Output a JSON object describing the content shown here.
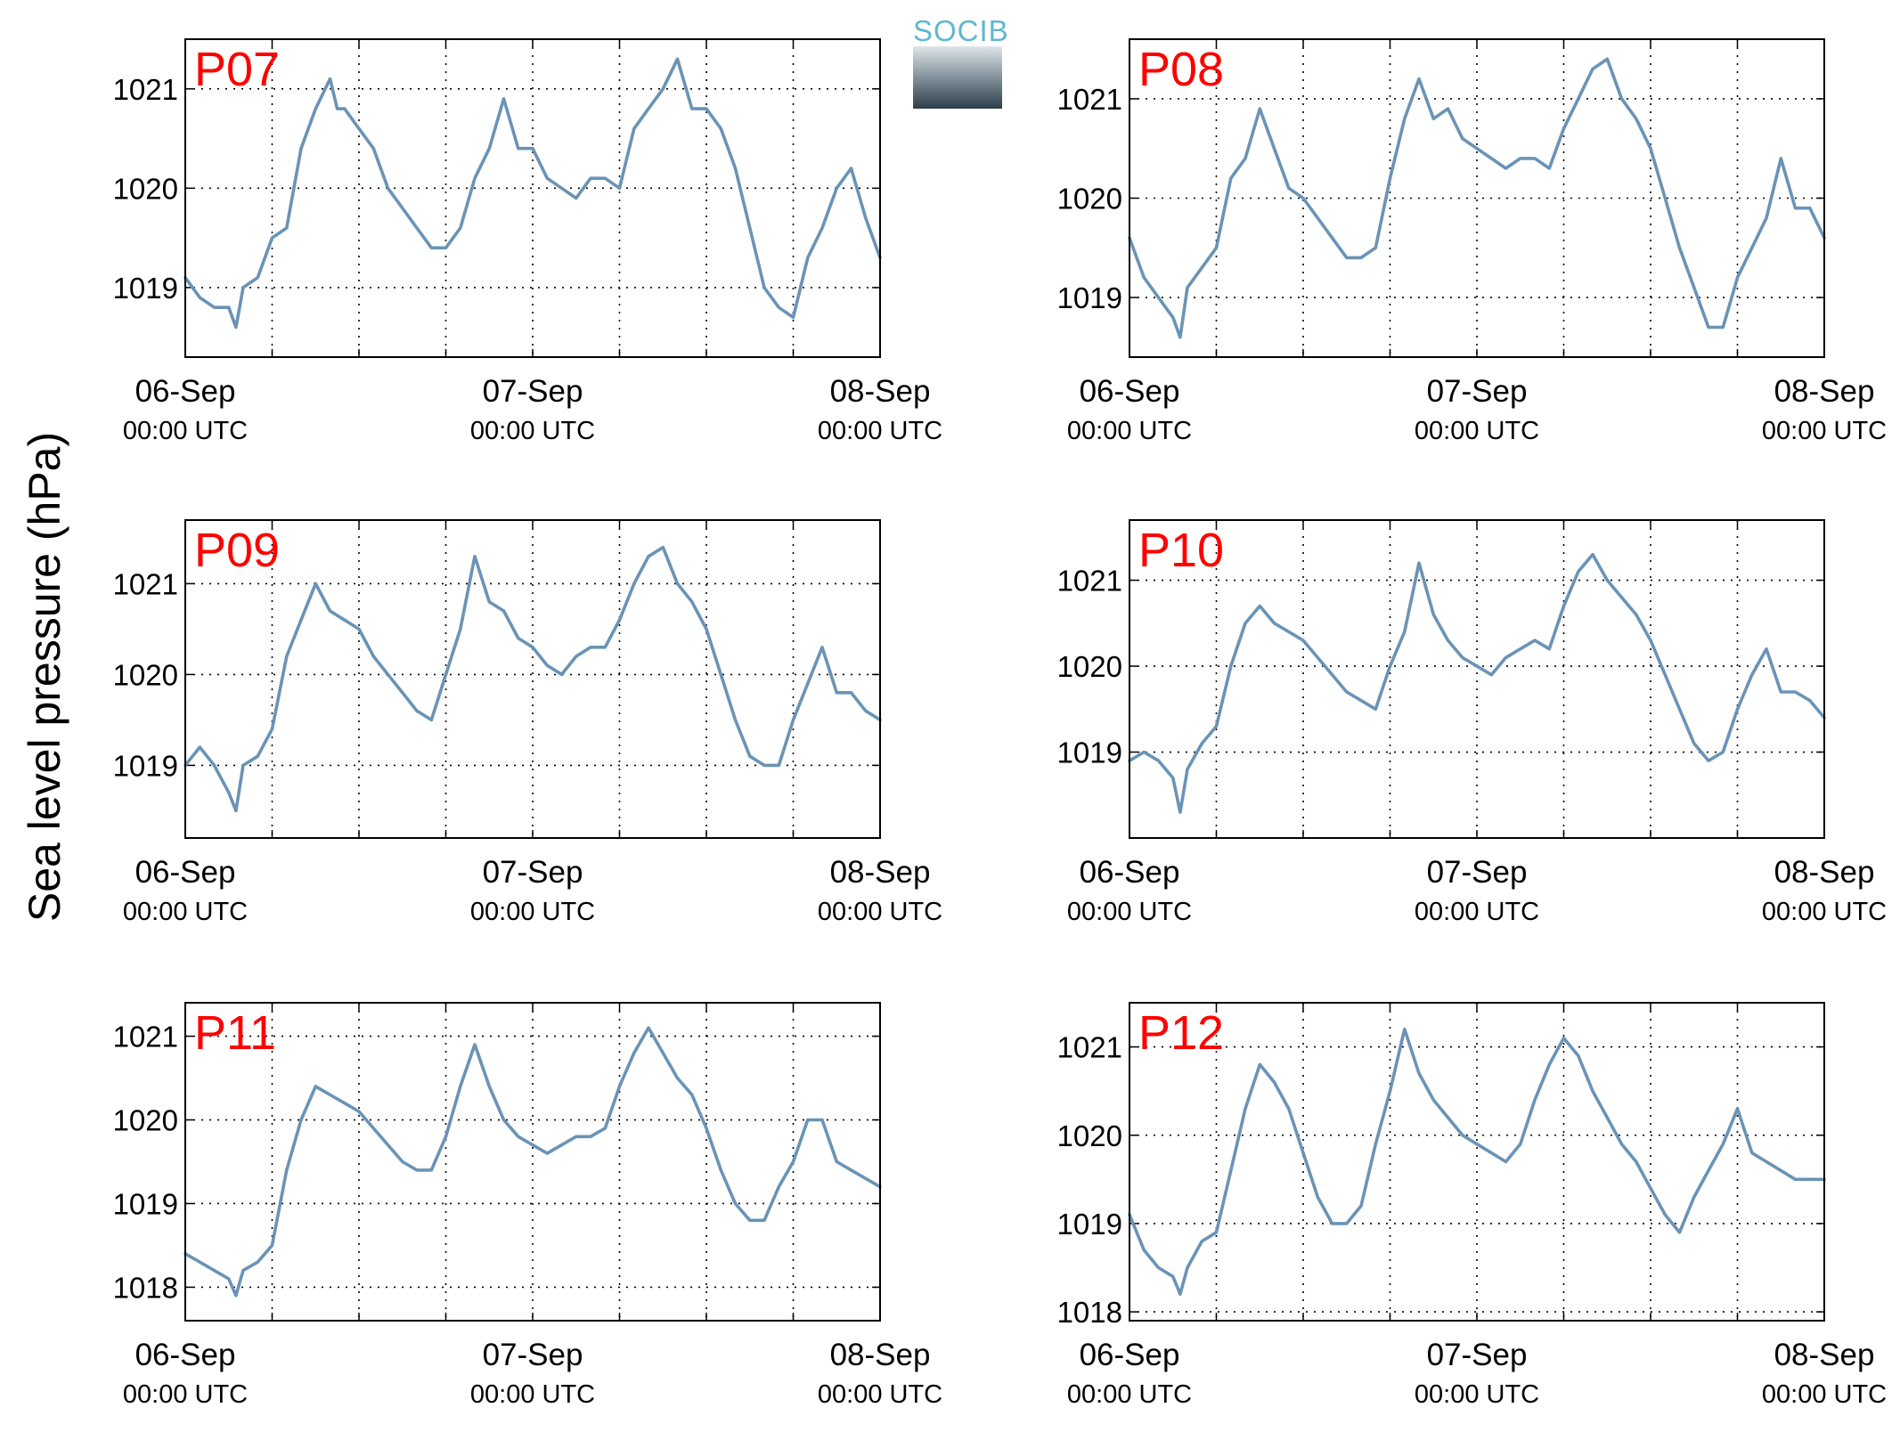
{
  "figure": {
    "ylabel": "Sea level pressure (hPa)",
    "logo_text": "SOCIB",
    "line_color": "#6a93b6",
    "station_label_color": "#ff0000"
  },
  "chart_data": [
    {
      "type": "line",
      "station": "P07",
      "x_unit": "hours since 06-Sep 00:00 UTC",
      "x_ticks": [
        {
          "day": "06-Sep",
          "time": "00:00 UTC",
          "x": 0
        },
        {
          "day": "07-Sep",
          "time": "00:00 UTC",
          "x": 24
        },
        {
          "day": "08-Sep",
          "time": "00:00 UTC",
          "x": 48
        }
      ],
      "xlim": [
        0,
        48
      ],
      "yticks": [
        1019,
        1020,
        1021
      ],
      "ylim": [
        1018.3,
        1021.5
      ],
      "grid": true,
      "x": [
        0,
        1,
        2,
        3,
        3.5,
        4,
        5,
        6,
        7,
        8,
        9,
        10,
        10.5,
        11,
        12,
        13,
        14,
        15,
        16,
        17,
        18,
        19,
        20,
        21,
        22,
        23,
        24,
        25,
        26,
        27,
        28,
        29,
        30,
        31,
        32,
        33,
        34,
        35,
        36,
        37,
        38,
        39,
        40,
        41,
        42,
        43,
        44,
        45,
        46,
        47,
        48
      ],
      "y": [
        1019.1,
        1018.9,
        1018.8,
        1018.8,
        1018.6,
        1019.0,
        1019.1,
        1019.5,
        1019.6,
        1020.4,
        1020.8,
        1021.1,
        1020.8,
        1020.8,
        1020.6,
        1020.4,
        1020.0,
        1019.8,
        1019.6,
        1019.4,
        1019.4,
        1019.6,
        1020.1,
        1020.4,
        1020.9,
        1020.4,
        1020.4,
        1020.1,
        1020.0,
        1019.9,
        1020.1,
        1020.1,
        1020.0,
        1020.6,
        1020.8,
        1021.0,
        1021.3,
        1020.8,
        1020.8,
        1020.6,
        1020.2,
        1019.6,
        1019.0,
        1018.8,
        1018.7,
        1019.3,
        1019.6,
        1020.0,
        1020.2,
        1019.7,
        1019.3
      ]
    },
    {
      "type": "line",
      "station": "P08",
      "x_unit": "hours since 06-Sep 00:00 UTC",
      "x_ticks": [
        {
          "day": "06-Sep",
          "time": "00:00 UTC",
          "x": 0
        },
        {
          "day": "07-Sep",
          "time": "00:00 UTC",
          "x": 24
        },
        {
          "day": "08-Sep",
          "time": "00:00 UTC",
          "x": 48
        }
      ],
      "xlim": [
        0,
        48
      ],
      "yticks": [
        1019,
        1020,
        1021
      ],
      "ylim": [
        1018.4,
        1021.6
      ],
      "grid": true,
      "x": [
        0,
        1,
        2,
        3,
        3.5,
        4,
        5,
        6,
        7,
        8,
        9,
        10,
        11,
        12,
        13,
        14,
        15,
        16,
        17,
        18,
        19,
        20,
        21,
        22,
        23,
        24,
        25,
        26,
        27,
        28,
        29,
        30,
        31,
        32,
        33,
        34,
        35,
        36,
        37,
        38,
        39,
        40,
        41,
        42,
        43,
        44,
        45,
        46,
        47,
        48
      ],
      "y": [
        1019.6,
        1019.2,
        1019.0,
        1018.8,
        1018.6,
        1019.1,
        1019.3,
        1019.5,
        1020.2,
        1020.4,
        1020.9,
        1020.5,
        1020.1,
        1020.0,
        1019.8,
        1019.6,
        1019.4,
        1019.4,
        1019.5,
        1020.2,
        1020.8,
        1021.2,
        1020.8,
        1020.9,
        1020.6,
        1020.5,
        1020.4,
        1020.3,
        1020.4,
        1020.4,
        1020.3,
        1020.7,
        1021.0,
        1021.3,
        1021.4,
        1021.0,
        1020.8,
        1020.5,
        1020.0,
        1019.5,
        1019.1,
        1018.7,
        1018.7,
        1019.2,
        1019.5,
        1019.8,
        1020.4,
        1019.9,
        1019.9,
        1019.6
      ]
    },
    {
      "type": "line",
      "station": "P09",
      "x_unit": "hours since 06-Sep 00:00 UTC",
      "x_ticks": [
        {
          "day": "06-Sep",
          "time": "00:00 UTC",
          "x": 0
        },
        {
          "day": "07-Sep",
          "time": "00:00 UTC",
          "x": 24
        },
        {
          "day": "08-Sep",
          "time": "00:00 UTC",
          "x": 48
        }
      ],
      "xlim": [
        0,
        48
      ],
      "yticks": [
        1019,
        1020,
        1021
      ],
      "ylim": [
        1018.2,
        1021.7
      ],
      "grid": true,
      "x": [
        0,
        1,
        2,
        3,
        3.5,
        4,
        5,
        6,
        7,
        8,
        9,
        10,
        11,
        12,
        13,
        14,
        15,
        16,
        17,
        18,
        19,
        20,
        21,
        22,
        23,
        24,
        25,
        26,
        27,
        28,
        29,
        30,
        31,
        32,
        33,
        34,
        35,
        36,
        37,
        38,
        39,
        40,
        41,
        42,
        43,
        44,
        45,
        46,
        47,
        48
      ],
      "y": [
        1019.0,
        1019.2,
        1019.0,
        1018.7,
        1018.5,
        1019.0,
        1019.1,
        1019.4,
        1020.2,
        1020.6,
        1021.0,
        1020.7,
        1020.6,
        1020.5,
        1020.2,
        1020.0,
        1019.8,
        1019.6,
        1019.5,
        1020.0,
        1020.5,
        1021.3,
        1020.8,
        1020.7,
        1020.4,
        1020.3,
        1020.1,
        1020.0,
        1020.2,
        1020.3,
        1020.3,
        1020.6,
        1021.0,
        1021.3,
        1021.4,
        1021.0,
        1020.8,
        1020.5,
        1020.0,
        1019.5,
        1019.1,
        1019.0,
        1019.0,
        1019.5,
        1019.9,
        1020.3,
        1019.8,
        1019.8,
        1019.6,
        1019.5
      ]
    },
    {
      "type": "line",
      "station": "P10",
      "x_unit": "hours since 06-Sep 00:00 UTC",
      "x_ticks": [
        {
          "day": "06-Sep",
          "time": "00:00 UTC",
          "x": 0
        },
        {
          "day": "07-Sep",
          "time": "00:00 UTC",
          "x": 24
        },
        {
          "day": "08-Sep",
          "time": "00:00 UTC",
          "x": 48
        }
      ],
      "xlim": [
        0,
        48
      ],
      "yticks": [
        1019,
        1020,
        1021
      ],
      "ylim": [
        1018.0,
        1021.7
      ],
      "grid": true,
      "x": [
        0,
        1,
        2,
        3,
        3.5,
        4,
        5,
        6,
        7,
        8,
        9,
        10,
        11,
        12,
        13,
        14,
        15,
        16,
        17,
        18,
        19,
        20,
        21,
        22,
        23,
        24,
        25,
        26,
        27,
        28,
        29,
        30,
        31,
        32,
        33,
        34,
        35,
        36,
        37,
        38,
        39,
        40,
        41,
        42,
        43,
        44,
        45,
        46,
        47,
        48
      ],
      "y": [
        1018.9,
        1019.0,
        1018.9,
        1018.7,
        1018.3,
        1018.8,
        1019.1,
        1019.3,
        1020.0,
        1020.5,
        1020.7,
        1020.5,
        1020.4,
        1020.3,
        1020.1,
        1019.9,
        1019.7,
        1019.6,
        1019.5,
        1020.0,
        1020.4,
        1021.2,
        1020.6,
        1020.3,
        1020.1,
        1020.0,
        1019.9,
        1020.1,
        1020.2,
        1020.3,
        1020.2,
        1020.7,
        1021.1,
        1021.3,
        1021.0,
        1020.8,
        1020.6,
        1020.3,
        1019.9,
        1019.5,
        1019.1,
        1018.9,
        1019.0,
        1019.5,
        1019.9,
        1020.2,
        1019.7,
        1019.7,
        1019.6,
        1019.4
      ]
    },
    {
      "type": "line",
      "station": "P11",
      "x_unit": "hours since 06-Sep 00:00 UTC",
      "x_ticks": [
        {
          "day": "06-Sep",
          "time": "00:00 UTC",
          "x": 0
        },
        {
          "day": "07-Sep",
          "time": "00:00 UTC",
          "x": 24
        },
        {
          "day": "08-Sep",
          "time": "00:00 UTC",
          "x": 48
        }
      ],
      "xlim": [
        0,
        48
      ],
      "yticks": [
        1018,
        1019,
        1020,
        1021
      ],
      "ylim": [
        1017.6,
        1021.4
      ],
      "grid": true,
      "x": [
        0,
        1,
        2,
        3,
        3.5,
        4,
        5,
        6,
        7,
        8,
        9,
        10,
        11,
        12,
        13,
        14,
        15,
        16,
        17,
        18,
        19,
        20,
        21,
        22,
        23,
        24,
        25,
        26,
        27,
        28,
        29,
        30,
        31,
        32,
        33,
        34,
        35,
        36,
        37,
        38,
        39,
        40,
        41,
        42,
        43,
        44,
        45,
        46,
        47,
        48
      ],
      "y": [
        1018.4,
        1018.3,
        1018.2,
        1018.1,
        1017.9,
        1018.2,
        1018.3,
        1018.5,
        1019.4,
        1020.0,
        1020.4,
        1020.3,
        1020.2,
        1020.1,
        1019.9,
        1019.7,
        1019.5,
        1019.4,
        1019.4,
        1019.8,
        1020.4,
        1020.9,
        1020.4,
        1020.0,
        1019.8,
        1019.7,
        1019.6,
        1019.7,
        1019.8,
        1019.8,
        1019.9,
        1020.4,
        1020.8,
        1021.1,
        1020.8,
        1020.5,
        1020.3,
        1019.9,
        1019.4,
        1019.0,
        1018.8,
        1018.8,
        1019.2,
        1019.5,
        1020.0,
        1020.0,
        1019.5,
        1019.4,
        1019.3,
        1019.2
      ]
    },
    {
      "type": "line",
      "station": "P12",
      "x_unit": "hours since 06-Sep 00:00 UTC",
      "x_ticks": [
        {
          "day": "06-Sep",
          "time": "00:00 UTC",
          "x": 0
        },
        {
          "day": "07-Sep",
          "time": "00:00 UTC",
          "x": 24
        },
        {
          "day": "08-Sep",
          "time": "00:00 UTC",
          "x": 48
        }
      ],
      "xlim": [
        0,
        48
      ],
      "yticks": [
        1018,
        1019,
        1020,
        1021
      ],
      "ylim": [
        1017.9,
        1021.5
      ],
      "grid": true,
      "x": [
        0,
        1,
        2,
        3,
        3.5,
        4,
        5,
        6,
        7,
        8,
        9,
        10,
        11,
        12,
        13,
        14,
        15,
        16,
        17,
        18,
        19,
        20,
        21,
        22,
        23,
        24,
        25,
        26,
        27,
        28,
        29,
        30,
        31,
        32,
        33,
        34,
        35,
        36,
        37,
        38,
        39,
        40,
        41,
        42,
        43,
        44,
        45,
        46,
        47,
        48
      ],
      "y": [
        1019.1,
        1018.7,
        1018.5,
        1018.4,
        1018.2,
        1018.5,
        1018.8,
        1018.9,
        1019.6,
        1020.3,
        1020.8,
        1020.6,
        1020.3,
        1019.8,
        1019.3,
        1019.0,
        1019.0,
        1019.2,
        1019.9,
        1020.5,
        1021.2,
        1020.7,
        1020.4,
        1020.2,
        1020.0,
        1019.9,
        1019.8,
        1019.7,
        1019.9,
        1020.4,
        1020.8,
        1021.1,
        1020.9,
        1020.5,
        1020.2,
        1019.9,
        1019.7,
        1019.4,
        1019.1,
        1018.9,
        1019.3,
        1019.6,
        1019.9,
        1020.3,
        1019.8,
        1019.7,
        1019.6,
        1019.5,
        1019.5,
        1019.5
      ]
    }
  ]
}
